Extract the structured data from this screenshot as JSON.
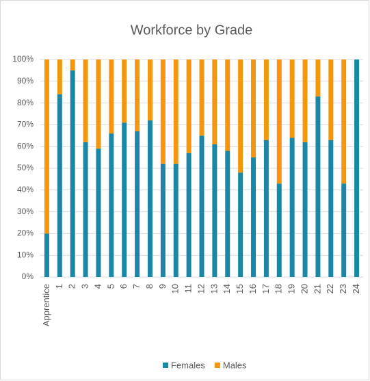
{
  "chart_data": {
    "type": "stacked_bar",
    "title": "Workforce by Grade",
    "categories": [
      "Apprentice",
      "1",
      "2",
      "3",
      "4",
      "5",
      "6",
      "7",
      "8",
      "9",
      "10",
      "11",
      "12",
      "13",
      "14",
      "15",
      "16",
      "17",
      "18",
      "19",
      "20",
      "21",
      "22",
      "23",
      "24"
    ],
    "series": [
      {
        "name": "Females",
        "color": "#1a87a6",
        "values": [
          20,
          84,
          95,
          62,
          59,
          66,
          71,
          67,
          72,
          52,
          52,
          57,
          65,
          61,
          58,
          48,
          55,
          63,
          43,
          64,
          62,
          83,
          63,
          43,
          100
        ]
      },
      {
        "name": "Males",
        "color": "#f5960f",
        "values": [
          80,
          16,
          5,
          38,
          41,
          34,
          29,
          33,
          28,
          48,
          48,
          43,
          35,
          39,
          42,
          52,
          45,
          37,
          57,
          36,
          38,
          17,
          37,
          57,
          0
        ]
      }
    ],
    "ylim": [
      0,
      100
    ],
    "yticks": [
      {
        "value": 0,
        "label": "0%"
      },
      {
        "value": 10,
        "label": "10%"
      },
      {
        "value": 20,
        "label": "20%"
      },
      {
        "value": 30,
        "label": "30%"
      },
      {
        "value": 40,
        "label": "40%"
      },
      {
        "value": 50,
        "label": "50%"
      },
      {
        "value": 60,
        "label": "60%"
      },
      {
        "value": 70,
        "label": "70%"
      },
      {
        "value": 80,
        "label": "80%"
      },
      {
        "value": 90,
        "label": "90%"
      },
      {
        "value": 100,
        "label": "100%"
      }
    ],
    "grid": true,
    "legend": "bottom"
  }
}
